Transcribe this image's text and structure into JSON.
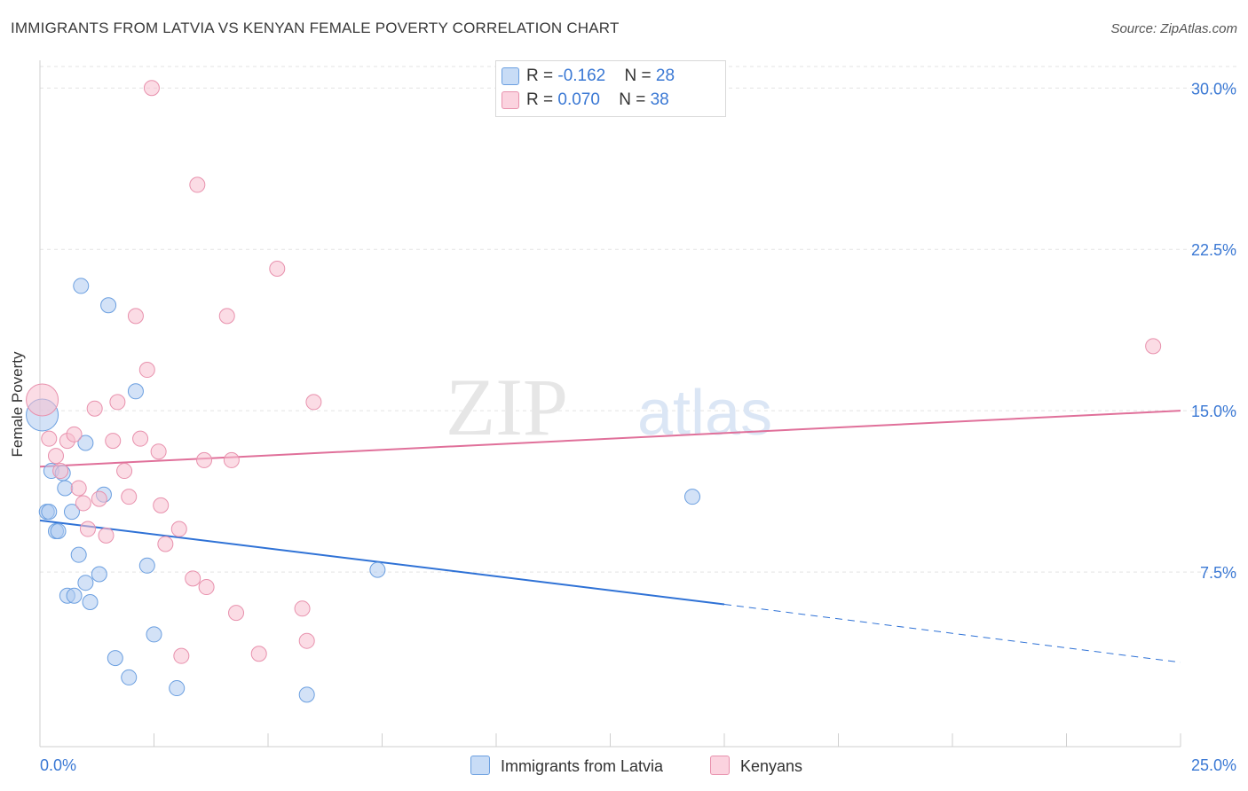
{
  "header": {
    "title": "IMMIGRANTS FROM LATVIA VS KENYAN FEMALE POVERTY CORRELATION CHART",
    "source": "Source: ZipAtlas.com"
  },
  "watermark": {
    "zip": "ZIP",
    "atlas": "atlas"
  },
  "legend": {
    "series1": {
      "r_label": "R = ",
      "r_value": "-0.162",
      "n_label": "N = ",
      "n_value": "28"
    },
    "series2": {
      "r_label": "R = ",
      "r_value": "0.070",
      "n_label": "N = ",
      "n_value": "38"
    }
  },
  "colors": {
    "latvia_fill": "#aecbf0",
    "latvia_stroke": "#6b9fe0",
    "latvia_line": "#2f72d6",
    "kenyan_fill": "#f7bfd0",
    "kenyan_stroke": "#e891ad",
    "kenyan_line": "#e0709a",
    "tick_label": "#3a78d4"
  },
  "chart_data": {
    "type": "scatter",
    "xlabel": "",
    "ylabel": "Female Poverty",
    "xlim": [
      0,
      25
    ],
    "ylim": [
      0,
      31
    ],
    "x_tick_labels": [
      "0.0%",
      "25.0%"
    ],
    "y_ticks": [
      7.5,
      15.0,
      22.5,
      30.0
    ],
    "y_tick_labels": [
      "7.5%",
      "15.0%",
      "22.5%",
      "30.0%"
    ],
    "grid": "horizontal dashed",
    "legend_position": "top-center",
    "series": [
      {
        "name": "Immigrants from Latvia",
        "r": -0.162,
        "n": 28,
        "trend": {
          "x0": 0,
          "y0": 9.9,
          "x1": 15,
          "y1": 6.0,
          "dashed_to_x": 25,
          "dashed_to_y": 3.3
        },
        "points": [
          {
            "x": 0.05,
            "y": 14.8,
            "big": true
          },
          {
            "x": 0.15,
            "y": 10.3
          },
          {
            "x": 0.2,
            "y": 10.3
          },
          {
            "x": 0.25,
            "y": 12.2
          },
          {
            "x": 0.35,
            "y": 9.4
          },
          {
            "x": 0.4,
            "y": 9.4
          },
          {
            "x": 0.5,
            "y": 12.1
          },
          {
            "x": 0.55,
            "y": 11.4
          },
          {
            "x": 0.6,
            "y": 6.4
          },
          {
            "x": 0.7,
            "y": 10.3
          },
          {
            "x": 0.75,
            "y": 6.4
          },
          {
            "x": 0.85,
            "y": 8.3
          },
          {
            "x": 0.9,
            "y": 20.8
          },
          {
            "x": 1.0,
            "y": 13.5
          },
          {
            "x": 1.0,
            "y": 7.0
          },
          {
            "x": 1.1,
            "y": 6.1
          },
          {
            "x": 1.3,
            "y": 7.4
          },
          {
            "x": 1.4,
            "y": 11.1
          },
          {
            "x": 1.5,
            "y": 19.9
          },
          {
            "x": 1.65,
            "y": 3.5
          },
          {
            "x": 1.95,
            "y": 2.6
          },
          {
            "x": 2.1,
            "y": 15.9
          },
          {
            "x": 2.35,
            "y": 7.8
          },
          {
            "x": 2.5,
            "y": 4.6
          },
          {
            "x": 3.0,
            "y": 2.1
          },
          {
            "x": 5.85,
            "y": 1.8
          },
          {
            "x": 7.4,
            "y": 7.6
          },
          {
            "x": 14.3,
            "y": 11.0
          }
        ]
      },
      {
        "name": "Kenyans",
        "r": 0.07,
        "n": 38,
        "trend": {
          "x0": 0,
          "y0": 12.4,
          "x1": 25,
          "y1": 15.0
        },
        "points": [
          {
            "x": 0.05,
            "y": 15.5,
            "big": true
          },
          {
            "x": 0.2,
            "y": 13.7
          },
          {
            "x": 0.35,
            "y": 12.9
          },
          {
            "x": 0.45,
            "y": 12.2
          },
          {
            "x": 0.6,
            "y": 13.6
          },
          {
            "x": 0.75,
            "y": 13.9
          },
          {
            "x": 0.85,
            "y": 11.4
          },
          {
            "x": 0.95,
            "y": 10.7
          },
          {
            "x": 1.05,
            "y": 9.5
          },
          {
            "x": 1.2,
            "y": 15.1
          },
          {
            "x": 1.3,
            "y": 10.9
          },
          {
            "x": 1.45,
            "y": 9.2
          },
          {
            "x": 1.6,
            "y": 13.6
          },
          {
            "x": 1.7,
            "y": 15.4
          },
          {
            "x": 1.85,
            "y": 12.2
          },
          {
            "x": 1.95,
            "y": 11.0
          },
          {
            "x": 2.1,
            "y": 19.4
          },
          {
            "x": 2.2,
            "y": 13.7
          },
          {
            "x": 2.35,
            "y": 16.9
          },
          {
            "x": 2.45,
            "y": 30.0
          },
          {
            "x": 2.6,
            "y": 13.1
          },
          {
            "x": 2.65,
            "y": 10.6
          },
          {
            "x": 2.75,
            "y": 8.8
          },
          {
            "x": 3.05,
            "y": 9.5
          },
          {
            "x": 3.1,
            "y": 3.6
          },
          {
            "x": 3.35,
            "y": 7.2
          },
          {
            "x": 3.45,
            "y": 25.5
          },
          {
            "x": 3.6,
            "y": 12.7
          },
          {
            "x": 3.65,
            "y": 6.8
          },
          {
            "x": 4.1,
            "y": 19.4
          },
          {
            "x": 4.2,
            "y": 12.7
          },
          {
            "x": 4.3,
            "y": 5.6
          },
          {
            "x": 4.8,
            "y": 3.7
          },
          {
            "x": 5.2,
            "y": 21.6
          },
          {
            "x": 5.75,
            "y": 5.8
          },
          {
            "x": 5.85,
            "y": 4.3
          },
          {
            "x": 6.0,
            "y": 15.4
          },
          {
            "x": 24.4,
            "y": 18.0
          }
        ]
      }
    ]
  }
}
